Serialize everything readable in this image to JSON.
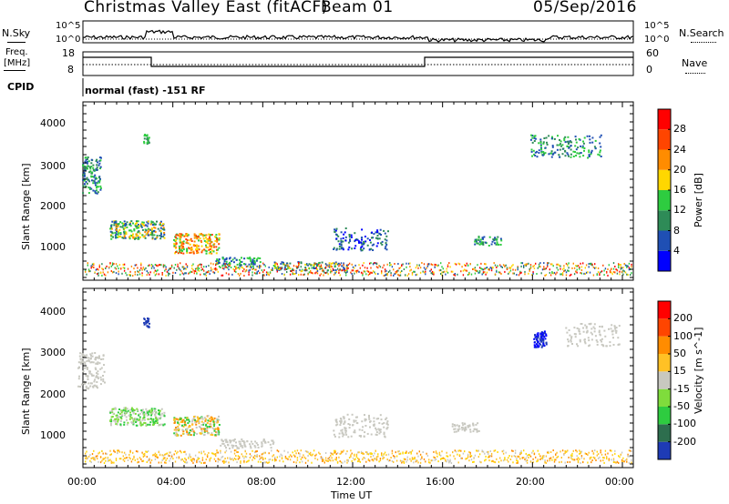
{
  "header": {
    "title": "Christmas Valley East (fitACF)",
    "beam": "Beam 01",
    "date": "05/Sep/2016"
  },
  "top_panels": {
    "nsky_label": "N.Sky",
    "nsearch_label": "N.Search",
    "noise_ticks_left": [
      "10^5",
      "10^0"
    ],
    "noise_ticks_right": [
      "10^5",
      "10^0"
    ],
    "freq_label_line1": "Freq.",
    "freq_label_line2": "[MHz]",
    "freq_ticks": [
      "18",
      "8"
    ],
    "nave_label": "Nave",
    "nave_ticks": [
      "60",
      "0"
    ],
    "cpid_label": "CPID",
    "cpid_text": "normal (fast) -151 RF"
  },
  "chart_data": [
    {
      "type": "heatmap",
      "title": "",
      "ylabel": "Slant Range [km]",
      "xlabel": "",
      "yticks": [
        "4000",
        "3000",
        "2000",
        "1000"
      ],
      "colorbar_label": "Power [dB]",
      "colorbar_ticks": [
        "28",
        "24",
        "20",
        "16",
        "12",
        "8",
        "4"
      ],
      "colorbar_colors": [
        "#0000ff",
        "#1f4fb4",
        "#2e8b57",
        "#2ecc40",
        "#ffd700",
        "#ff8c00",
        "#ff4500",
        "#ff0000"
      ]
    },
    {
      "type": "heatmap",
      "title": "",
      "ylabel": "Slant Range [km]",
      "xlabel": "Time UT",
      "yticks": [
        "4000",
        "3000",
        "2000",
        "1000"
      ],
      "xticks": [
        "00:00",
        "04:00",
        "08:00",
        "12:00",
        "16:00",
        "20:00",
        "00:00"
      ],
      "colorbar_label": "Velocity [m s^-1]",
      "colorbar_ticks": [
        "200",
        "100",
        "50",
        "15",
        "-15",
        "-50",
        "-100",
        "-200"
      ],
      "colorbar_colors": [
        "#1e3bb5",
        "#2d6e4e",
        "#2ecc40",
        "#7fdc3c",
        "#c8c8c0",
        "#ffc125",
        "#ff8c00",
        "#ff4500",
        "#ff0000"
      ]
    }
  ]
}
